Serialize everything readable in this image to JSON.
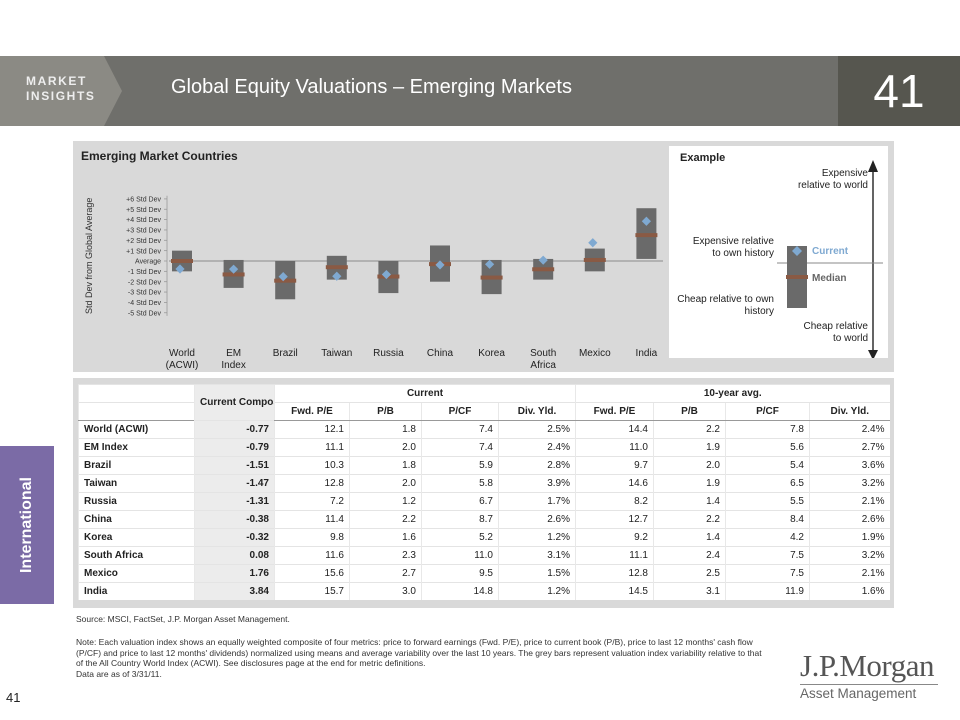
{
  "header": {
    "logo_line1": "MARKET",
    "logo_line2": "INSIGHTS",
    "title": "Global Equity Valuations – Emerging Markets",
    "page_badge": "41"
  },
  "sidebar": {
    "section": "International"
  },
  "footer": {
    "page_number": "41",
    "source": "Source: MSCI, FactSet, J.P. Morgan Asset Management.",
    "note": "Note: Each valuation index shows an equally weighted composite of four metrics: price to forward earnings (Fwd. P/E), price to current book (P/B), price to last 12 months' cash flow (P/CF) and price to last 12 months' dividends) normalized using means and average variability over the last 10 years. The grey bars represent valuation index variability relative to that of the All Country World Index (ACWI). See disclosures page at the end for metric definitions.",
    "data_date": "Data are as of 3/31/11."
  },
  "brand": {
    "line1": "J.P.Morgan",
    "line2": "Asset Management"
  },
  "colors": {
    "band": "#6f6f6b",
    "badge": "#56564f",
    "sidebar": "#7b6ba6",
    "bar": "#6a6a6a",
    "median": "#8a5a44",
    "current": "#7fa9d1",
    "panel": "#d9d9d9"
  },
  "chart_data": {
    "type": "range-bar",
    "title": "Emerging Market Countries",
    "ylabel": "Std Dev from Global Average",
    "y_ticks": [
      "+6 Std Dev",
      "+5 Std Dev",
      "+4 Std Dev",
      "+3 Std Dev",
      "+2 Std Dev",
      "+1 Std Dev",
      "Average",
      "-1 Std Dev",
      "-2 Std Dev",
      "-3 Std Dev",
      "-4 Std Dev",
      "-5 Std Dev"
    ],
    "y_tick_values": [
      6,
      5,
      4,
      3,
      2,
      1,
      0,
      -1,
      -2,
      -3,
      -4,
      -5
    ],
    "ylim": [
      -5,
      6
    ],
    "categories": [
      "World (ACWI)",
      "EM Index",
      "Brazil",
      "Taiwan",
      "Russia",
      "China",
      "Korea",
      "South Africa",
      "Mexico",
      "India"
    ],
    "range_low": [
      -1.0,
      -2.6,
      -3.7,
      -1.8,
      -3.1,
      -2.0,
      -3.2,
      -1.8,
      -1.0,
      0.2
    ],
    "range_high": [
      1.0,
      0.1,
      0.0,
      0.5,
      0.0,
      1.5,
      0.1,
      0.2,
      1.2,
      5.1
    ],
    "median": [
      0.0,
      -1.3,
      -1.9,
      -0.6,
      -1.5,
      -0.3,
      -1.6,
      -0.8,
      0.1,
      2.5
    ],
    "current": [
      -0.77,
      -0.79,
      -1.51,
      -1.47,
      -1.31,
      -0.38,
      -0.32,
      0.08,
      1.76,
      3.84
    ],
    "legend": {
      "title": "Example",
      "current_label": "Current",
      "median_label": "Median",
      "expensive_world": "Expensive relative to world",
      "expensive_history": "Expensive relative to own history",
      "cheap_history": "Cheap relative to own history",
      "cheap_world": "Cheap relative to world"
    }
  },
  "table": {
    "composite_header": "Current Composite Index",
    "group_current": "Current",
    "group_avg": "10-year avg.",
    "columns": [
      "Fwd. P/E",
      "P/B",
      "P/CF",
      "Div. Yld.",
      "Fwd. P/E",
      "P/B",
      "P/CF",
      "Div. Yld."
    ],
    "rows": [
      {
        "name": "World (ACWI)",
        "composite": "-0.77",
        "values": [
          "12.1",
          "1.8",
          "7.4",
          "2.5%",
          "14.4",
          "2.2",
          "7.8",
          "2.4%"
        ]
      },
      {
        "name": "EM Index",
        "composite": "-0.79",
        "values": [
          "11.1",
          "2.0",
          "7.4",
          "2.4%",
          "11.0",
          "1.9",
          "5.6",
          "2.7%"
        ]
      },
      {
        "name": "Brazil",
        "composite": "-1.51",
        "values": [
          "10.3",
          "1.8",
          "5.9",
          "2.8%",
          "9.7",
          "2.0",
          "5.4",
          "3.6%"
        ]
      },
      {
        "name": "Taiwan",
        "composite": "-1.47",
        "values": [
          "12.8",
          "2.0",
          "5.8",
          "3.9%",
          "14.6",
          "1.9",
          "6.5",
          "3.2%"
        ]
      },
      {
        "name": "Russia",
        "composite": "-1.31",
        "values": [
          "7.2",
          "1.2",
          "6.7",
          "1.7%",
          "8.2",
          "1.4",
          "5.5",
          "2.1%"
        ]
      },
      {
        "name": "China",
        "composite": "-0.38",
        "values": [
          "11.4",
          "2.2",
          "8.7",
          "2.6%",
          "12.7",
          "2.2",
          "8.4",
          "2.6%"
        ]
      },
      {
        "name": "Korea",
        "composite": "-0.32",
        "values": [
          "9.8",
          "1.6",
          "5.2",
          "1.2%",
          "9.2",
          "1.4",
          "4.2",
          "1.9%"
        ]
      },
      {
        "name": "South Africa",
        "composite": "0.08",
        "values": [
          "11.6",
          "2.3",
          "11.0",
          "3.1%",
          "11.1",
          "2.4",
          "7.5",
          "3.2%"
        ]
      },
      {
        "name": "Mexico",
        "composite": "1.76",
        "values": [
          "15.6",
          "2.7",
          "9.5",
          "1.5%",
          "12.8",
          "2.5",
          "7.5",
          "2.1%"
        ]
      },
      {
        "name": "India",
        "composite": "3.84",
        "values": [
          "15.7",
          "3.0",
          "14.8",
          "1.2%",
          "14.5",
          "3.1",
          "11.9",
          "1.6%"
        ]
      }
    ]
  }
}
